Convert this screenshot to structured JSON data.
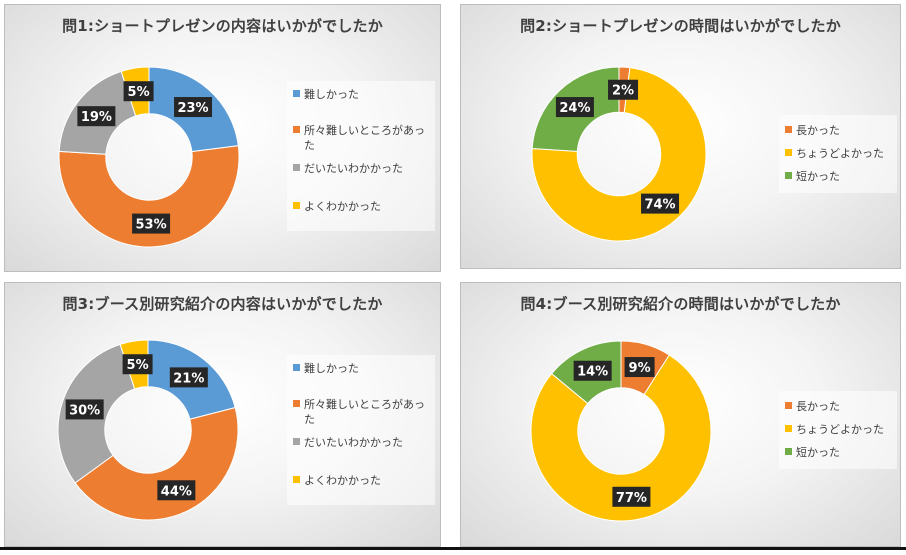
{
  "colors": {
    "blue": "#5B9BD5",
    "orange": "#ED7D31",
    "gray": "#A5A5A5",
    "yellow": "#FFC000",
    "green": "#70AD47",
    "label_bg": "#262626",
    "label_text": "#FFFFFF"
  },
  "chart_data": [
    {
      "type": "pie",
      "title": "問1:ショートプレゼンの内容はいかがでしたか",
      "categories": [
        "難しかった",
        "所々難しいところがあった",
        "だいたいわかかった",
        "よくわかかった"
      ],
      "values": [
        23,
        53,
        19,
        5
      ],
      "data_labels": [
        "23%",
        "53%",
        "19%",
        "5%"
      ],
      "colors": [
        "#5B9BD5",
        "#ED7D31",
        "#A5A5A5",
        "#FFC000"
      ],
      "legend_placement": "right",
      "donut": true
    },
    {
      "type": "pie",
      "title": "問2:ショートプレゼンの時間はいかがでしたか",
      "categories": [
        "長かった",
        "ちょうどよかった",
        "短かった"
      ],
      "values": [
        2,
        74,
        24
      ],
      "data_labels": [
        "2%",
        "74%",
        "24%"
      ],
      "colors": [
        "#ED7D31",
        "#FFC000",
        "#70AD47"
      ],
      "legend_placement": "right",
      "donut": true
    },
    {
      "type": "pie",
      "title": "問3:ブース別研究紹介の内容はいかがでしたか",
      "categories": [
        "難しかった",
        "所々難しいところがあった",
        "だいたいわかかった",
        "よくわかかった"
      ],
      "values": [
        21,
        44,
        30,
        5
      ],
      "data_labels": [
        "21%",
        "44%",
        "30%",
        "5%"
      ],
      "colors": [
        "#5B9BD5",
        "#ED7D31",
        "#A5A5A5",
        "#FFC000"
      ],
      "legend_placement": "right",
      "donut": true
    },
    {
      "type": "pie",
      "title": "問4:ブース別研究紹介の時間はいかがでしたか",
      "categories": [
        "長かった",
        "ちょうどよかった",
        "短かった"
      ],
      "values": [
        9,
        77,
        14
      ],
      "data_labels": [
        "9%",
        "77%",
        "14%"
      ],
      "colors": [
        "#ED7D31",
        "#FFC000",
        "#70AD47"
      ],
      "legend_placement": "right",
      "donut": true
    }
  ]
}
